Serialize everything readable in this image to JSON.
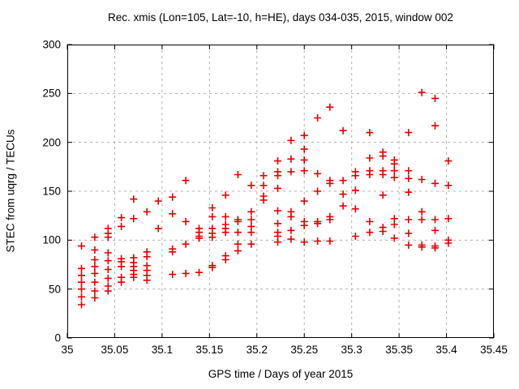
{
  "chart_data": {
    "type": "scatter",
    "title": "Rec. xmis (Lon=105, Lat=-10, h=HE), days 034-035, 2015, window 002",
    "xlabel": "GPS time / Days of year 2015",
    "ylabel": "STEC from uqrg / TECUs",
    "xlim": [
      35,
      35.45
    ],
    "ylim": [
      0,
      300
    ],
    "xticks": {
      "values": [
        35,
        35.05,
        35.1,
        35.15,
        35.2,
        35.25,
        35.3,
        35.35,
        35.4,
        35.45
      ],
      "labels": [
        "35",
        "35.05",
        "35.1",
        "35.15",
        "35.2",
        "35.25",
        "35.3",
        "35.35",
        "35.4",
        "35.45"
      ]
    },
    "yticks": {
      "values": [
        0,
        50,
        100,
        150,
        200,
        250,
        300
      ],
      "labels": [
        "0",
        "50",
        "100",
        "150",
        "200",
        "250",
        "300"
      ]
    },
    "grid": true,
    "grid_color": "#b0b0b0",
    "legend": "none",
    "marker": {
      "shape": "plus",
      "color": "#e60000",
      "size": 9
    },
    "series": [
      {
        "name": "STEC from uqrg",
        "points": [
          [
            35.015,
            94
          ],
          [
            35.015,
            71
          ],
          [
            35.015,
            64
          ],
          [
            35.015,
            57
          ],
          [
            35.015,
            50
          ],
          [
            35.015,
            42
          ],
          [
            35.015,
            34
          ],
          [
            35.029,
            103
          ],
          [
            35.029,
            90
          ],
          [
            35.029,
            80
          ],
          [
            35.029,
            73
          ],
          [
            35.029,
            66
          ],
          [
            35.029,
            57
          ],
          [
            35.029,
            48
          ],
          [
            35.029,
            41
          ],
          [
            35.043,
            112
          ],
          [
            35.043,
            107
          ],
          [
            35.043,
            103
          ],
          [
            35.043,
            87
          ],
          [
            35.043,
            79
          ],
          [
            35.043,
            70
          ],
          [
            35.043,
            61
          ],
          [
            35.043,
            53
          ],
          [
            35.043,
            48
          ],
          [
            35.057,
            123
          ],
          [
            35.057,
            114
          ],
          [
            35.057,
            81
          ],
          [
            35.057,
            78
          ],
          [
            35.057,
            73
          ],
          [
            35.057,
            62
          ],
          [
            35.057,
            57
          ],
          [
            35.07,
            142
          ],
          [
            35.07,
            122
          ],
          [
            35.07,
            82
          ],
          [
            35.07,
            77
          ],
          [
            35.07,
            73
          ],
          [
            35.07,
            69
          ],
          [
            35.07,
            65
          ],
          [
            35.07,
            62
          ],
          [
            35.084,
            129
          ],
          [
            35.084,
            88
          ],
          [
            35.084,
            83
          ],
          [
            35.084,
            74
          ],
          [
            35.084,
            69
          ],
          [
            35.084,
            64
          ],
          [
            35.084,
            59
          ],
          [
            35.096,
            140
          ],
          [
            35.096,
            112
          ],
          [
            35.111,
            144
          ],
          [
            35.111,
            127
          ],
          [
            35.111,
            91
          ],
          [
            35.111,
            88
          ],
          [
            35.111,
            65
          ],
          [
            35.125,
            161
          ],
          [
            35.125,
            119
          ],
          [
            35.125,
            96
          ],
          [
            35.125,
            66
          ],
          [
            35.139,
            112
          ],
          [
            35.139,
            108
          ],
          [
            35.139,
            104
          ],
          [
            35.139,
            102
          ],
          [
            35.139,
            67
          ],
          [
            35.153,
            133
          ],
          [
            35.153,
            124
          ],
          [
            35.153,
            112
          ],
          [
            35.153,
            107
          ],
          [
            35.153,
            103
          ],
          [
            35.153,
            74
          ],
          [
            35.153,
            72
          ],
          [
            35.167,
            146
          ],
          [
            35.167,
            124
          ],
          [
            35.167,
            116
          ],
          [
            35.167,
            112
          ],
          [
            35.167,
            108
          ],
          [
            35.167,
            84
          ],
          [
            35.167,
            80
          ],
          [
            35.18,
            167
          ],
          [
            35.18,
            121
          ],
          [
            35.18,
            119
          ],
          [
            35.18,
            108
          ],
          [
            35.18,
            96
          ],
          [
            35.18,
            89
          ],
          [
            35.194,
            156
          ],
          [
            35.194,
            129
          ],
          [
            35.194,
            121
          ],
          [
            35.194,
            114
          ],
          [
            35.194,
            108
          ],
          [
            35.194,
            96
          ],
          [
            35.207,
            166
          ],
          [
            35.207,
            156
          ],
          [
            35.207,
            145
          ],
          [
            35.207,
            141
          ],
          [
            35.222,
            181
          ],
          [
            35.222,
            170
          ],
          [
            35.222,
            166
          ],
          [
            35.222,
            153
          ],
          [
            35.222,
            130
          ],
          [
            35.222,
            117
          ],
          [
            35.222,
            108
          ],
          [
            35.222,
            104
          ],
          [
            35.222,
            98
          ],
          [
            35.236,
            202
          ],
          [
            35.236,
            183
          ],
          [
            35.236,
            170
          ],
          [
            35.236,
            129
          ],
          [
            35.236,
            124
          ],
          [
            35.236,
            110
          ],
          [
            35.236,
            101
          ],
          [
            35.25,
            207
          ],
          [
            35.25,
            193
          ],
          [
            35.25,
            182
          ],
          [
            35.25,
            171
          ],
          [
            35.25,
            140
          ],
          [
            35.25,
            119
          ],
          [
            35.25,
            115
          ],
          [
            35.25,
            98
          ],
          [
            35.264,
            225
          ],
          [
            35.264,
            168
          ],
          [
            35.264,
            150
          ],
          [
            35.264,
            119
          ],
          [
            35.264,
            117
          ],
          [
            35.264,
            99
          ],
          [
            35.277,
            236
          ],
          [
            35.277,
            161
          ],
          [
            35.277,
            158
          ],
          [
            35.277,
            124
          ],
          [
            35.277,
            121
          ],
          [
            35.277,
            99
          ],
          [
            35.291,
            212
          ],
          [
            35.291,
            161
          ],
          [
            35.291,
            147
          ],
          [
            35.291,
            135
          ],
          [
            35.304,
            170
          ],
          [
            35.304,
            166
          ],
          [
            35.304,
            151
          ],
          [
            35.304,
            132
          ],
          [
            35.304,
            104
          ],
          [
            35.319,
            210
          ],
          [
            35.319,
            184
          ],
          [
            35.319,
            171
          ],
          [
            35.319,
            167
          ],
          [
            35.319,
            119
          ],
          [
            35.319,
            108
          ],
          [
            35.333,
            190
          ],
          [
            35.333,
            186
          ],
          [
            35.333,
            171
          ],
          [
            35.333,
            167
          ],
          [
            35.333,
            146
          ],
          [
            35.333,
            113
          ],
          [
            35.333,
            109
          ],
          [
            35.345,
            182
          ],
          [
            35.345,
            178
          ],
          [
            35.345,
            171
          ],
          [
            35.345,
            164
          ],
          [
            35.345,
            122
          ],
          [
            35.345,
            116
          ],
          [
            35.345,
            102
          ],
          [
            35.36,
            210
          ],
          [
            35.36,
            171
          ],
          [
            35.36,
            163
          ],
          [
            35.36,
            149
          ],
          [
            35.36,
            121
          ],
          [
            35.36,
            107
          ],
          [
            35.36,
            95
          ],
          [
            35.374,
            251
          ],
          [
            35.374,
            162
          ],
          [
            35.374,
            129
          ],
          [
            35.374,
            121
          ],
          [
            35.374,
            95
          ],
          [
            35.374,
            93
          ],
          [
            35.388,
            245
          ],
          [
            35.388,
            217
          ],
          [
            35.388,
            158
          ],
          [
            35.388,
            121
          ],
          [
            35.388,
            110
          ],
          [
            35.388,
            94
          ],
          [
            35.388,
            92
          ],
          [
            35.402,
            181
          ],
          [
            35.402,
            156
          ],
          [
            35.402,
            122
          ],
          [
            35.402,
            100
          ],
          [
            35.402,
            97
          ]
        ]
      }
    ]
  }
}
